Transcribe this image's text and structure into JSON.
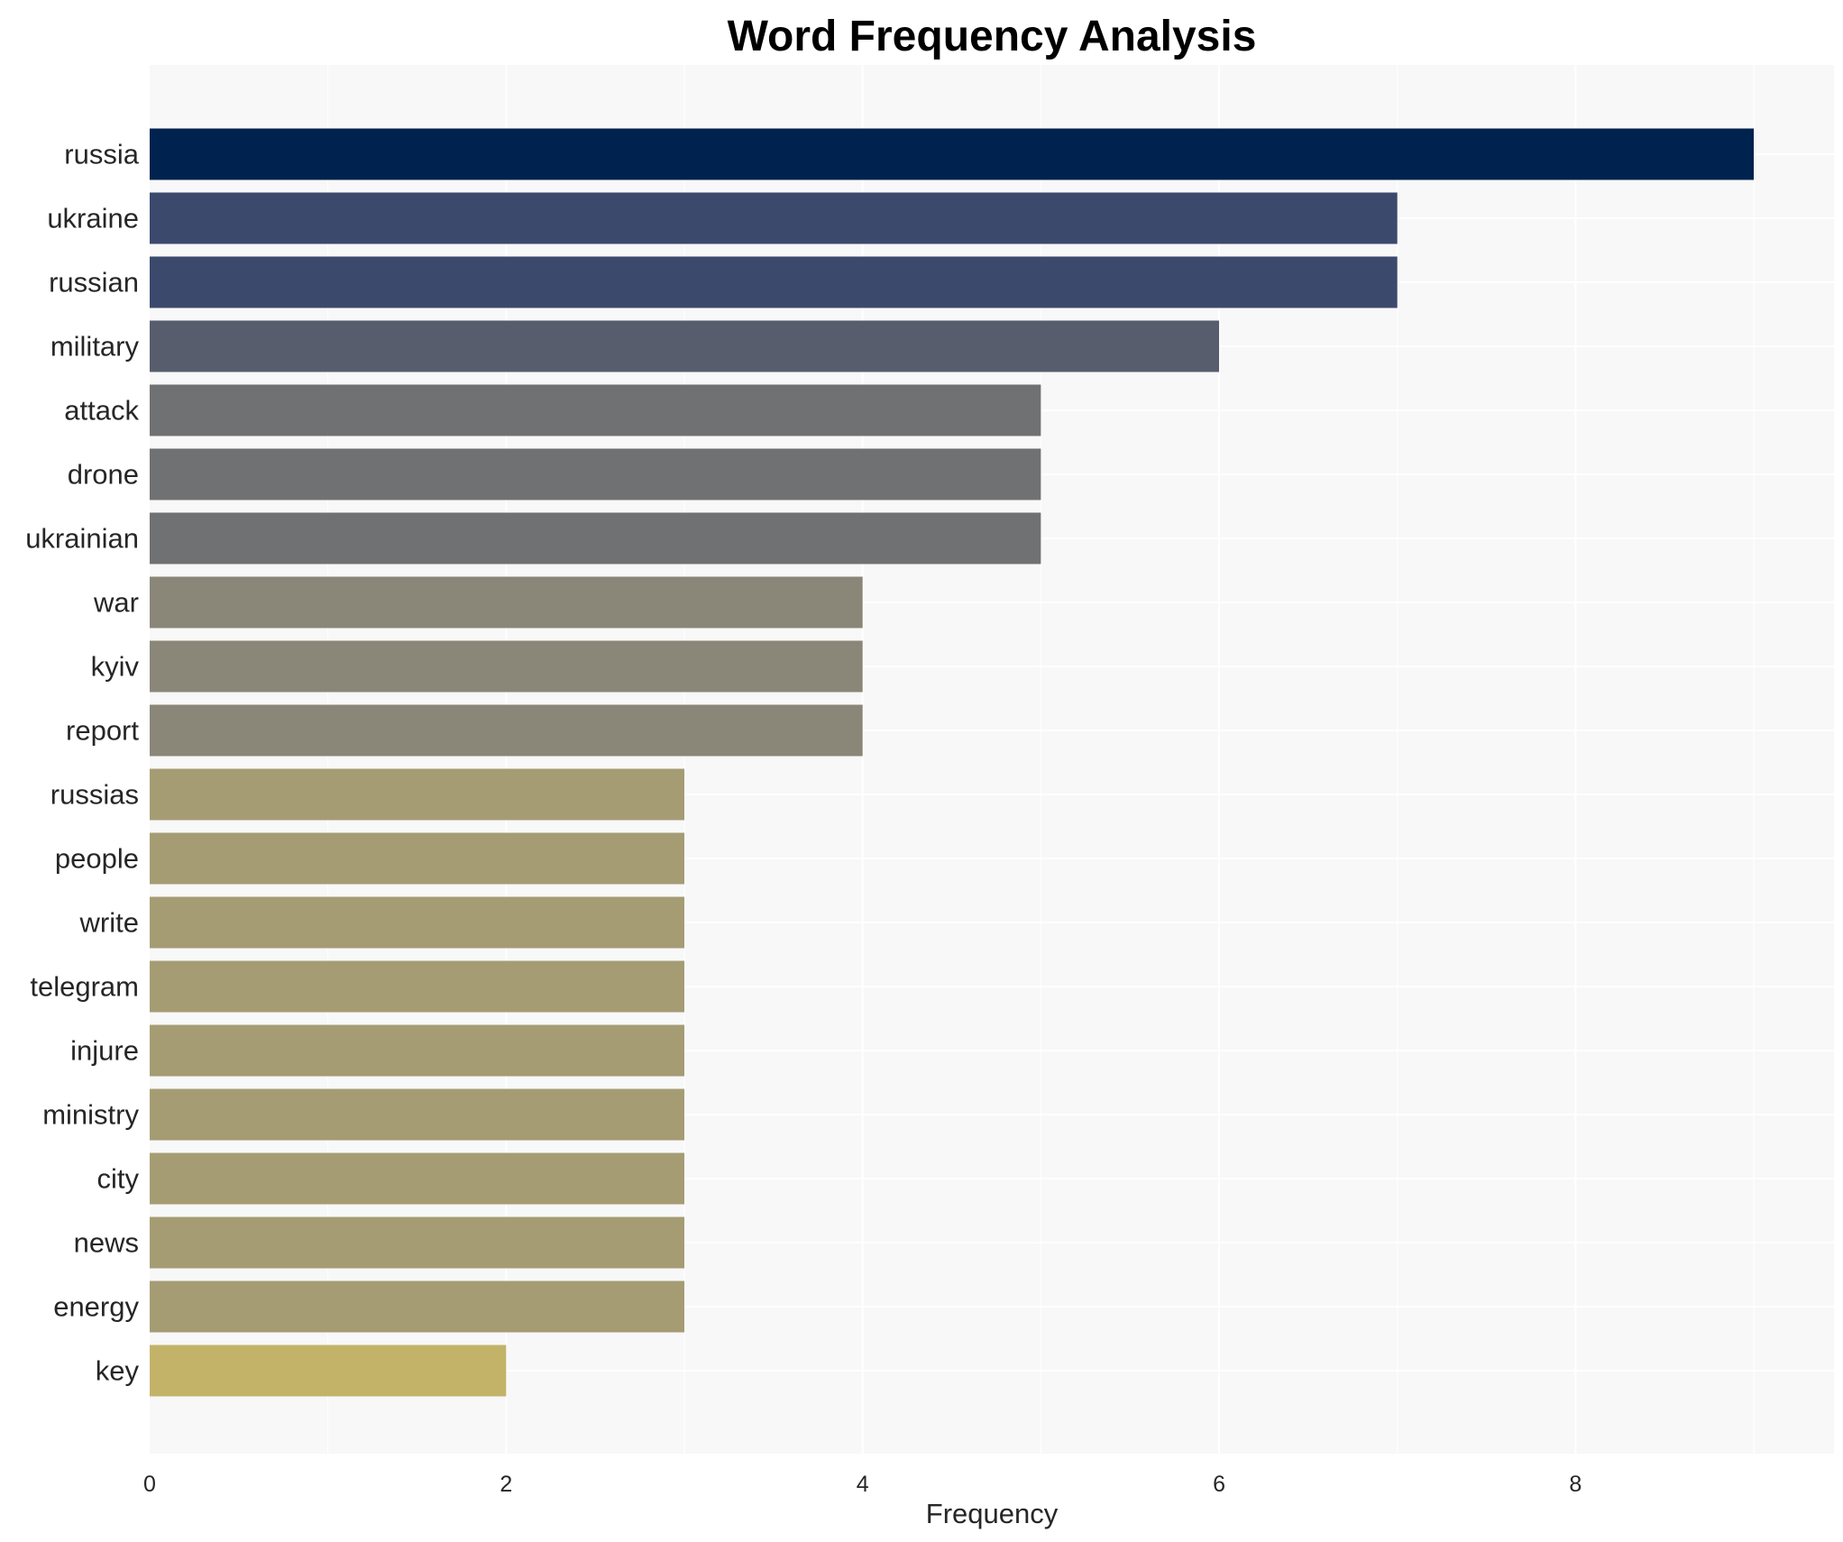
{
  "chart_data": {
    "type": "bar",
    "orientation": "horizontal",
    "title": "Word Frequency Analysis",
    "xlabel": "Frequency",
    "ylabel": "",
    "categories": [
      "russia",
      "ukraine",
      "russian",
      "military",
      "attack",
      "drone",
      "ukrainian",
      "war",
      "kyiv",
      "report",
      "russias",
      "people",
      "write",
      "telegram",
      "injure",
      "ministry",
      "city",
      "news",
      "energy",
      "key"
    ],
    "values": [
      9,
      7,
      7,
      6,
      5,
      5,
      5,
      4,
      4,
      4,
      3,
      3,
      3,
      3,
      3,
      3,
      3,
      3,
      3,
      2
    ],
    "xlim": [
      0,
      9.45
    ],
    "xticks": [
      0,
      2,
      4,
      6,
      8
    ],
    "grid": true,
    "colors_by_value": {
      "9": "#00224e",
      "7": "#3b496c",
      "6": "#575d6d",
      "5": "#707173",
      "4": "#8a8678",
      "3": "#a59c74",
      "2": "#c3b369"
    },
    "background": "#f8f8f8",
    "legend": "none"
  }
}
